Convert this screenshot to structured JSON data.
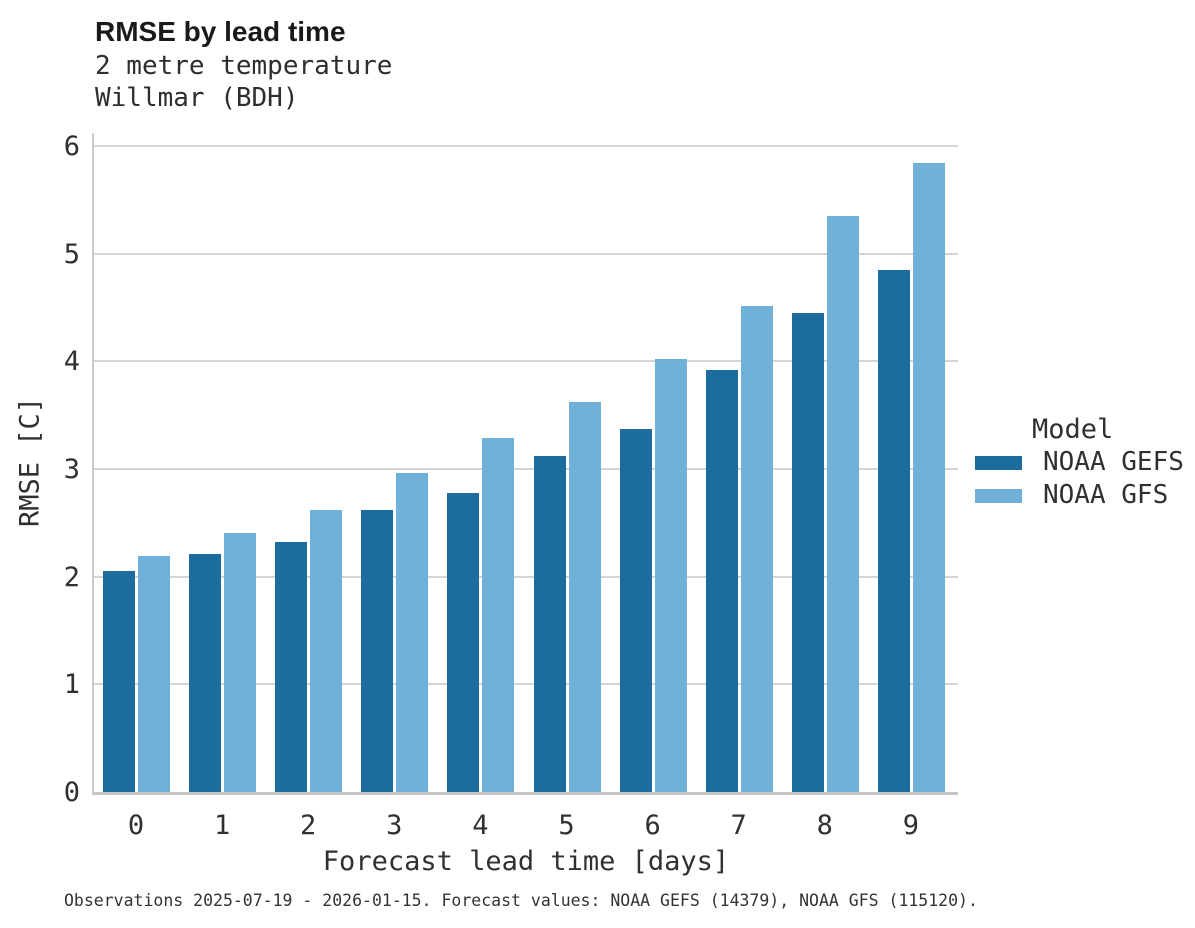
{
  "chart_data": {
    "type": "bar",
    "title": "RMSE by lead time",
    "subtitle_lines": [
      "2 metre temperature",
      "Willmar (BDH)"
    ],
    "xlabel": "Forecast lead time [days]",
    "ylabel": "RMSE [C]",
    "legend_title": "Model",
    "legend_position": "right-center",
    "grid": "horizontal-only",
    "categories": [
      "0",
      "1",
      "2",
      "3",
      "4",
      "5",
      "6",
      "7",
      "8",
      "9"
    ],
    "yticks": [
      0,
      1,
      2,
      3,
      4,
      5,
      6
    ],
    "ylim": [
      0,
      6.12
    ],
    "series": [
      {
        "name": "NOAA GEFS",
        "color": "#1c6d9e",
        "values": [
          2.05,
          2.21,
          2.32,
          2.62,
          2.78,
          3.12,
          3.37,
          3.92,
          4.45,
          4.85
        ]
      },
      {
        "name": "NOAA GFS",
        "color": "#70b1d9",
        "values": [
          2.19,
          2.41,
          2.62,
          2.96,
          3.29,
          3.62,
          4.02,
          4.51,
          5.35,
          5.84
        ]
      }
    ]
  },
  "footer": {
    "text": "Observations 2025-07-19 - 2026-01-15. Forecast values: NOAA GEFS (14379), NOAA GFS (115120)."
  },
  "colors": {
    "gridline": "#d4d4d4",
    "spine_left": "#cccccc",
    "spine_bottom": "#c6c6c6",
    "title_text": "#1a1a1a",
    "body_text": "#303030"
  }
}
